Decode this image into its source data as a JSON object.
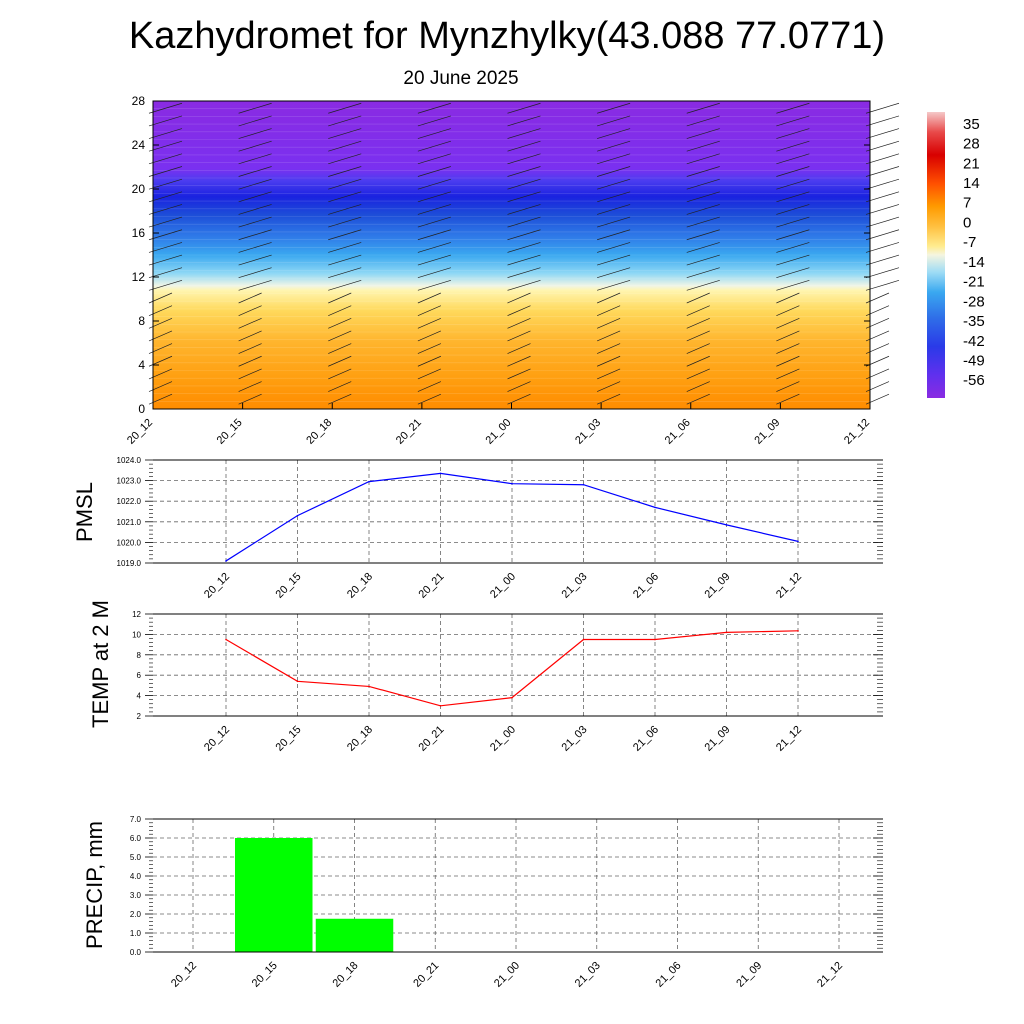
{
  "header": {
    "title": "Kazhydromet for Mynzhylky(43.088 77.0771)",
    "subtitle": "20 June 2025"
  },
  "colors": {
    "pmsl_line": "#0000ff",
    "temp_line": "#ff0000",
    "precip_bar": "#00ff00",
    "cross_section_scale": [
      "#8a2be2",
      "#4b3cf0",
      "#1e64e6",
      "#3ca0f0",
      "#7ed2f5",
      "#f5f5d2",
      "#ffe166",
      "#ffc83c",
      "#ffaa19",
      "#ff8c00",
      "#ff3000",
      "#e00000",
      "#ff9a9a"
    ]
  },
  "chart_data": [
    {
      "type": "heatmap",
      "name": "cross-section",
      "x_ticks": [
        "20_12",
        "20_15",
        "20_18",
        "20_21",
        "21_00",
        "21_03",
        "21_06",
        "21_09",
        "21_12"
      ],
      "y_ticks": [
        "0",
        "4",
        "8",
        "12",
        "16",
        "20",
        "24",
        "28"
      ],
      "ylim": [
        0,
        28
      ],
      "colorbar": {
        "labels": [
          "35",
          "28",
          "21",
          "14",
          "7",
          "0",
          "-7",
          "-14",
          "-21",
          "-28",
          "-35",
          "-42",
          "-49",
          "-56"
        ],
        "range": [
          -63,
          42
        ]
      },
      "overlay": "wind barbs"
    },
    {
      "type": "line",
      "name": "pmsl",
      "ylabel": "PMSL",
      "categories": [
        "20_12",
        "20_15",
        "20_18",
        "20_21",
        "21_00",
        "21_03",
        "21_06",
        "21_09",
        "21_12"
      ],
      "values": [
        1019.1,
        1021.3,
        1022.95,
        1023.35,
        1022.85,
        1022.8,
        1021.7,
        1020.85,
        1020.05
      ],
      "ylim": [
        1019.0,
        1024.0
      ],
      "y_ticks": [
        "1019.0",
        "1020.0",
        "1021.0",
        "1022.0",
        "1023.0",
        "1024.0"
      ],
      "grid": true
    },
    {
      "type": "line",
      "name": "temp",
      "ylabel": "TEMP at 2 M",
      "categories": [
        "20_12",
        "20_15",
        "20_18",
        "20_21",
        "21_00",
        "21_03",
        "21_06",
        "21_09",
        "21_12"
      ],
      "values": [
        9.5,
        5.4,
        4.9,
        3.0,
        3.8,
        9.5,
        9.5,
        10.2,
        10.35
      ],
      "ylim": [
        2,
        12
      ],
      "y_ticks": [
        "2",
        "4",
        "6",
        "8",
        "10",
        "12"
      ],
      "grid": true
    },
    {
      "type": "bar",
      "name": "precip",
      "ylabel": "PRECIP, mm",
      "categories": [
        "20_12",
        "20_15",
        "20_18",
        "20_21",
        "21_00",
        "21_03",
        "21_06",
        "21_09",
        "21_12"
      ],
      "values": [
        0,
        6.0,
        1.75,
        0,
        0,
        0,
        0,
        0,
        0
      ],
      "ylim": [
        0,
        7
      ],
      "y_ticks": [
        "0.0",
        "1.0",
        "2.0",
        "3.0",
        "4.0",
        "5.0",
        "6.0",
        "7.0"
      ],
      "grid": true
    }
  ]
}
